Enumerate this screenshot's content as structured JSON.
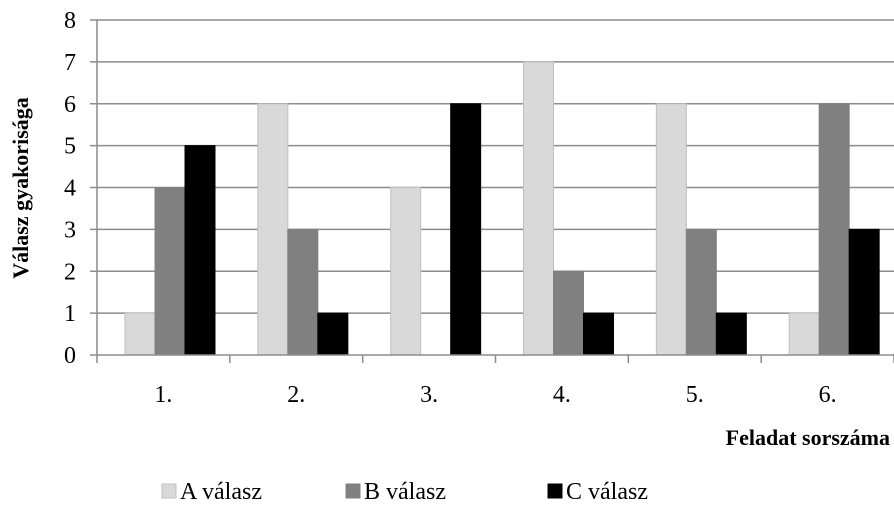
{
  "chart_data": {
    "type": "bar",
    "categories": [
      "1.",
      "2.",
      "3.",
      "4.",
      "5.",
      "6."
    ],
    "series": [
      {
        "name": "A válasz",
        "values": [
          1,
          6,
          4,
          7,
          6,
          1
        ],
        "color": "#d9d9d9"
      },
      {
        "name": "B válasz",
        "values": [
          4,
          3,
          0,
          2,
          3,
          6
        ],
        "color": "#808080"
      },
      {
        "name": "C válasz",
        "values": [
          5,
          1,
          6,
          1,
          1,
          3
        ],
        "color": "#000000"
      }
    ],
    "xlabel": "Feladat sorszáma",
    "ylabel": "Válasz gyakorisága",
    "ylim": [
      0,
      8
    ],
    "yticks": [
      "0",
      "1",
      "2",
      "3",
      "4",
      "5",
      "6",
      "7",
      "8"
    ],
    "grid": true,
    "legend_position": "bottom"
  }
}
